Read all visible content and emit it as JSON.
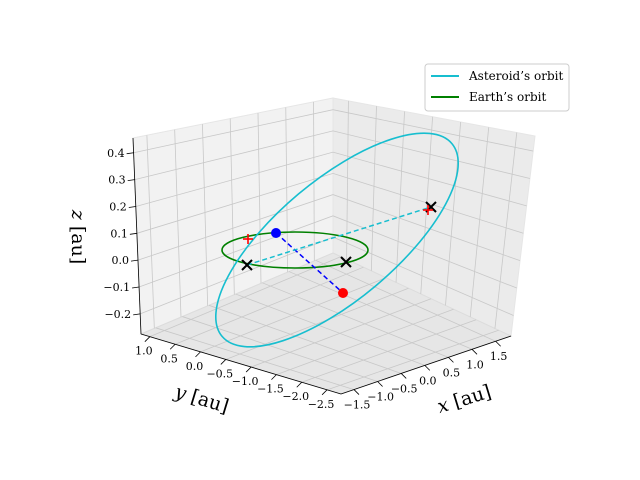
{
  "chart_data": {
    "type": "line",
    "projection": "3d",
    "grid": true,
    "legend_placement": "top-right",
    "axes": {
      "x": {
        "label_var": "x",
        "label_unit": " [au]",
        "ticks": [
          "−1.5",
          "−1.0",
          "−0.5",
          "0.0",
          "0.5",
          "1.0",
          "1.5"
        ]
      },
      "y": {
        "label_var": "y",
        "label_unit": " [au]",
        "ticks": [
          "1.0",
          "0.5",
          "0.0",
          "−0.5",
          "−1.0",
          "−1.5",
          "−2.0",
          "−2.5"
        ]
      },
      "z": {
        "label_var": "z",
        "label_unit": " [au]",
        "ticks": [
          "0.4",
          "0.3",
          "0.2",
          "0.1",
          "0.0",
          "−0.1",
          "−0.2"
        ]
      }
    },
    "series": [
      {
        "name": "Asteroid’s orbit",
        "color": "#17becf",
        "kind": "ellipse",
        "center": [
          0.0,
          -0.7,
          0.1
        ],
        "semi_major": 1.8,
        "semi_minor": 1.25,
        "inclination_note": "tilted"
      },
      {
        "name": "Earth’s orbit",
        "color": "#008000",
        "kind": "circle",
        "center": [
          0.0,
          0.0,
          0.0
        ],
        "radius": 1.0
      }
    ],
    "points": [
      {
        "label": "asteroid-now",
        "color": "#ff0000",
        "marker": "circle"
      },
      {
        "label": "earth-now",
        "color": "#0000ff",
        "marker": "circle"
      },
      {
        "label": "node-1",
        "color": "#000000",
        "marker": "x"
      },
      {
        "label": "node-2",
        "color": "#000000",
        "marker": "x"
      },
      {
        "label": "node-3",
        "color": "#000000",
        "marker": "x"
      },
      {
        "label": "plus-1",
        "color": "#ff0000",
        "marker": "plus"
      },
      {
        "label": "plus-2",
        "color": "#ff0000",
        "marker": "plus"
      }
    ],
    "connectors": [
      {
        "from": "earth-now",
        "to": "asteroid-now",
        "color": "#0000ff",
        "style": "dashed"
      },
      {
        "from": "node-1",
        "to": "node-3",
        "color": "#17becf",
        "style": "dashed"
      }
    ]
  },
  "legend": {
    "items": [
      {
        "label": "Asteroid’s orbit",
        "color": "#17becf"
      },
      {
        "label": "Earth’s orbit",
        "color": "#008000"
      }
    ]
  }
}
